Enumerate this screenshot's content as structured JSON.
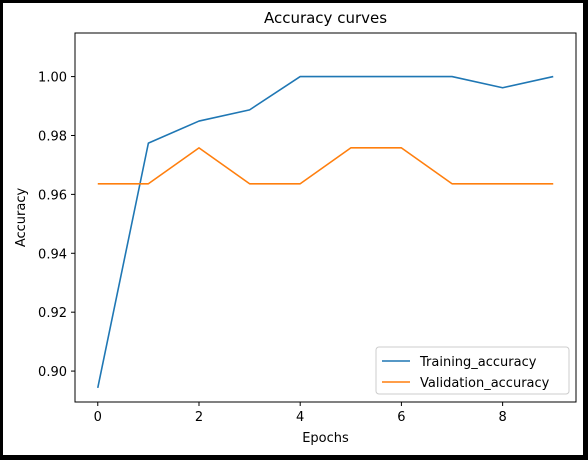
{
  "chart_data": {
    "type": "line",
    "title": "Accuracy curves",
    "xlabel": "Epochs",
    "ylabel": "Accuracy",
    "xlim": [
      -0.45,
      9.45
    ],
    "ylim": [
      0.8895,
      1.0148
    ],
    "xticks": [
      0,
      2,
      4,
      6,
      8
    ],
    "yticks": [
      0.9,
      0.92,
      0.94,
      0.96,
      0.98,
      1.0
    ],
    "ytick_labels": [
      "0.90",
      "0.92",
      "0.94",
      "0.96",
      "0.98",
      "1.00"
    ],
    "legend_position": "bottom-right",
    "grid": false,
    "x": [
      0,
      1,
      2,
      3,
      4,
      5,
      6,
      7,
      8,
      9
    ],
    "series": [
      {
        "name": "Training_accuracy",
        "color": "#1f77b4",
        "values": [
          0.8943,
          0.9774,
          0.9849,
          0.9887,
          1.0,
          1.0,
          1.0,
          1.0,
          0.9962,
          1.0
        ]
      },
      {
        "name": "Validation_accuracy",
        "color": "#ff7f0e",
        "values": [
          0.9636,
          0.9636,
          0.9758,
          0.9636,
          0.9636,
          0.9758,
          0.9758,
          0.9636,
          0.9636,
          0.9636
        ]
      }
    ]
  }
}
